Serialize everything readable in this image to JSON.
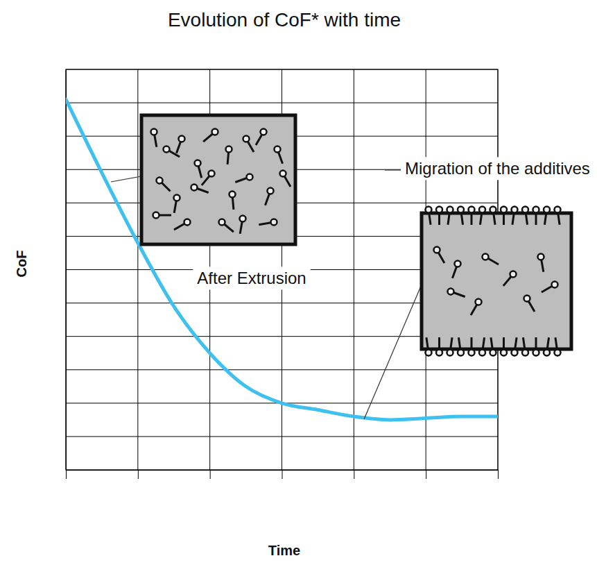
{
  "chart_data": {
    "type": "line",
    "title": "Evolution of CoF* with time",
    "x_label": "Time",
    "y_label": "CoF",
    "x": [
      0,
      0.5,
      1,
      1.5,
      2,
      2.5,
      3,
      3.5,
      4,
      4.5,
      5,
      5.5,
      6
    ],
    "values": [
      11.1,
      8.9,
      6.8,
      4.9,
      3.5,
      2.5,
      2.0,
      1.8,
      1.6,
      1.5,
      1.55,
      1.6,
      1.6
    ],
    "color": "#3ec1f0",
    "xlim": [
      0,
      6
    ],
    "ylim": [
      0,
      12
    ],
    "xticks": [
      0,
      1,
      2,
      3,
      4,
      5,
      6
    ],
    "yticks": [
      0,
      1,
      2,
      3,
      4,
      5,
      6,
      7,
      8,
      9,
      10,
      11,
      12
    ],
    "grid": true,
    "tick_labels": false,
    "annotations": [
      "After Extrusion",
      "Migration of the additives"
    ]
  }
}
